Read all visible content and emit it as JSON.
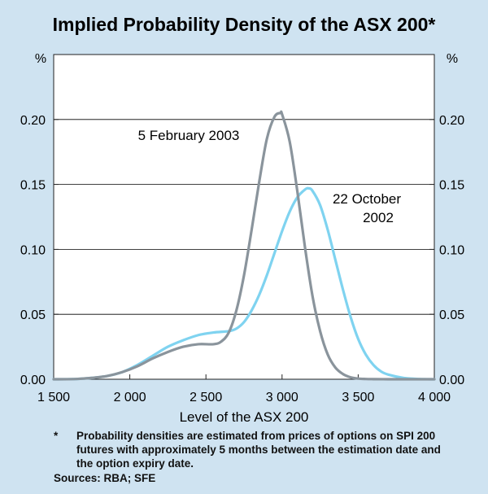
{
  "chart_data": {
    "type": "line",
    "title": "Implied Probability Density of the ASX 200*",
    "xlabel": "Level of the ASX 200",
    "ylabel_left": "%",
    "ylabel_right": "%",
    "xlim": [
      1500,
      4000
    ],
    "ylim": [
      0,
      0.25
    ],
    "x_ticks": [
      1500,
      2000,
      2500,
      3000,
      3500,
      4000
    ],
    "x_tick_labels": [
      "1 500",
      "2 000",
      "2 500",
      "3 000",
      "3 500",
      "4 000"
    ],
    "y_ticks": [
      0,
      0.05,
      0.1,
      0.15,
      0.2
    ],
    "y_tick_labels": [
      "0.00",
      "0.05",
      "0.10",
      "0.15",
      "0.20"
    ],
    "series": [
      {
        "name": "5 February 2003",
        "color": "#8a949c",
        "x": [
          1500,
          1650,
          1750,
          1850,
          1950,
          2050,
          2150,
          2250,
          2350,
          2450,
          2550,
          2600,
          2650,
          2700,
          2750,
          2800,
          2850,
          2900,
          2950,
          2990,
          3000,
          3050,
          3100,
          3150,
          3200,
          3250,
          3300,
          3350,
          3400,
          3450,
          3500,
          3550,
          3600,
          3700,
          3800,
          4000
        ],
        "values": [
          0.0,
          0.0002,
          0.001,
          0.0025,
          0.0055,
          0.01,
          0.016,
          0.021,
          0.025,
          0.027,
          0.027,
          0.029,
          0.036,
          0.053,
          0.08,
          0.115,
          0.152,
          0.185,
          0.202,
          0.205,
          0.204,
          0.183,
          0.145,
          0.102,
          0.064,
          0.037,
          0.019,
          0.009,
          0.004,
          0.0015,
          0.0005,
          0.0002,
          0.0001,
          0.0,
          0.0,
          0.0
        ]
      },
      {
        "name": "22 October 2002",
        "color": "#7fd3f0",
        "x": [
          1500,
          1650,
          1750,
          1850,
          1950,
          2050,
          2150,
          2250,
          2350,
          2450,
          2550,
          2650,
          2700,
          2750,
          2800,
          2850,
          2900,
          2950,
          3000,
          3050,
          3100,
          3150,
          3175,
          3200,
          3250,
          3300,
          3350,
          3400,
          3450,
          3500,
          3550,
          3600,
          3650,
          3700,
          3800,
          3900,
          4000
        ],
        "values": [
          0.0,
          0.0002,
          0.001,
          0.0025,
          0.0055,
          0.011,
          0.018,
          0.025,
          0.03,
          0.034,
          0.036,
          0.037,
          0.039,
          0.044,
          0.053,
          0.065,
          0.08,
          0.097,
          0.114,
          0.129,
          0.14,
          0.146,
          0.147,
          0.145,
          0.134,
          0.115,
          0.092,
          0.069,
          0.048,
          0.031,
          0.019,
          0.011,
          0.006,
          0.0035,
          0.001,
          0.0002,
          0.0
        ]
      }
    ],
    "series_labels": {
      "feb": "5 February 2003",
      "oct_line1": "22 October",
      "oct_line2": "2002"
    }
  },
  "footnote": {
    "marker": "*",
    "text": "Probability densities are estimated from prices of options on SPI 200 futures with approximately 5 months between the estimation date and the option expiry date."
  },
  "sources": "Sources: RBA; SFE"
}
